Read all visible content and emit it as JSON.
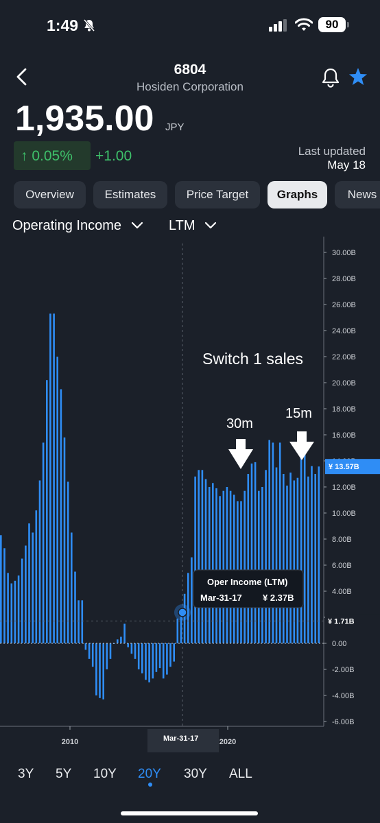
{
  "status_bar": {
    "time": "1:49",
    "battery": "90"
  },
  "header": {
    "ticker": "6804",
    "company": "Hosiden Corporation"
  },
  "quote": {
    "price": "1,935.00",
    "currency": "JPY",
    "change_pct": "↑ 0.05%",
    "change_abs": "+1.00",
    "updated_label": "Last updated",
    "updated_date": "May 18"
  },
  "tabs": [
    {
      "label": "Overview"
    },
    {
      "label": "Estimates"
    },
    {
      "label": "Price Target"
    },
    {
      "label": "Graphs",
      "active": true
    },
    {
      "label": "News"
    }
  ],
  "controls": {
    "metric": "Operating Income",
    "period": "LTM"
  },
  "annotations": {
    "switch": "Switch 1 sales",
    "a30": "30m",
    "a15": "15m"
  },
  "tooltip": {
    "title": "Oper Income (LTM)",
    "date": "Mar-31-17",
    "value": "¥ 2.37B"
  },
  "markers": {
    "current": "¥ 13.57B",
    "crosshair": "¥ 1.71B",
    "crosshair_date": "Mar-31-17"
  },
  "ranges": [
    {
      "label": "3Y"
    },
    {
      "label": "5Y"
    },
    {
      "label": "10Y"
    },
    {
      "label": "20Y",
      "active": true
    },
    {
      "label": "30Y"
    },
    {
      "label": "ALL"
    }
  ],
  "colors": {
    "bar": "#2f8df5",
    "background": "#1b2029",
    "positive": "#3ec06a",
    "accent": "#2f8df5"
  },
  "chart_data": {
    "type": "bar",
    "title": "Operating Income",
    "period": "LTM",
    "ylim": [
      -6,
      31
    ],
    "y_ticks": [
      "30.00B",
      "28.00B",
      "26.00B",
      "24.00B",
      "22.00B",
      "20.00B",
      "18.00B",
      "16.00B",
      "14.00B",
      "12.00B",
      "10.00B",
      "8.00B",
      "6.00B",
      "4.00B",
      "2.00B",
      "0.00",
      "-2.00B",
      "-4.00B",
      "-6.00B"
    ],
    "x_ticks": [
      "2010",
      "2020"
    ],
    "unit": "B JPY",
    "values": [
      8.3,
      7.3,
      5.4,
      4.6,
      4.8,
      5.2,
      6.5,
      7.5,
      9.2,
      8.5,
      10.2,
      12.5,
      15.4,
      20.2,
      25.3,
      25.3,
      22.0,
      19.5,
      15.8,
      12.4,
      8.5,
      5.5,
      3.3,
      3.3,
      -0.5,
      -1.2,
      -1.8,
      -4.0,
      -4.2,
      -4.3,
      -2.0,
      -1.2,
      0.0,
      0.3,
      0.5,
      1.5,
      -0.3,
      -0.8,
      -1.2,
      -2.0,
      -2.3,
      -2.8,
      -3.0,
      -2.7,
      -2.2,
      -1.9,
      -2.7,
      -2.4,
      -1.8,
      -1.4,
      1.9,
      2.37,
      3.8,
      5.4,
      6.6,
      12.8,
      13.3,
      13.3,
      12.6,
      12.0,
      12.3,
      11.9,
      11.3,
      11.7,
      12.0,
      11.7,
      11.4,
      10.9,
      10.9,
      11.7,
      13.0,
      13.8,
      13.9,
      11.7,
      12.0,
      13.3,
      15.6,
      15.4,
      13.5,
      15.4,
      13.0,
      12.1,
      13.1,
      12.5,
      12.7,
      14.8,
      14.7,
      12.8,
      13.6,
      13.0,
      13.57
    ]
  }
}
